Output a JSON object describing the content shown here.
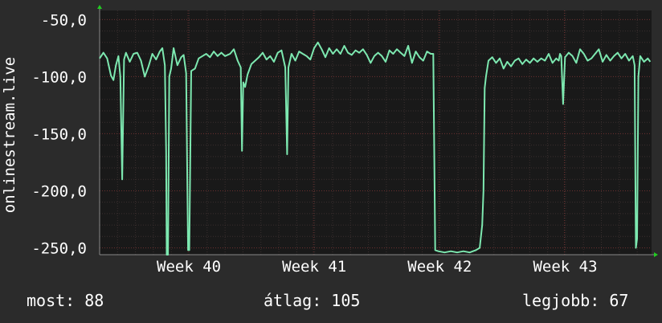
{
  "chart_data": {
    "type": "line",
    "ylabel": "onlinestream.live",
    "ylim": [
      -256,
      -42
    ],
    "yticks": [
      {
        "value": -50,
        "label": "-50,0"
      },
      {
        "value": -100,
        "label": "-100,0"
      },
      {
        "value": -150,
        "label": "-150,0"
      },
      {
        "value": -200,
        "label": "-200,0"
      },
      {
        "value": -250,
        "label": "-250,0"
      }
    ],
    "xlim": [
      0,
      4.4
    ],
    "xticks": [
      {
        "value": 0.705,
        "label": "Week 40"
      },
      {
        "value": 1.705,
        "label": "Week 41"
      },
      {
        "value": 2.705,
        "label": "Week 42"
      },
      {
        "value": 3.705,
        "label": "Week 43"
      }
    ],
    "grid": true,
    "colors": {
      "background": "#2b2b2b",
      "plot": "#191919",
      "grid_minor": "#3a2f2f",
      "grid_major": "#6a2f2f",
      "line": "#7de8b0",
      "axis": "#888888",
      "arrow": "#22cc22"
    },
    "series": [
      {
        "values": [
          [
            0.0,
            -84
          ],
          [
            0.03,
            -79
          ],
          [
            0.06,
            -84
          ],
          [
            0.09,
            -99
          ],
          [
            0.11,
            -103
          ],
          [
            0.13,
            -90
          ],
          [
            0.15,
            -82
          ],
          [
            0.165,
            -100
          ],
          [
            0.18,
            -190
          ],
          [
            0.195,
            -85
          ],
          [
            0.21,
            -79
          ],
          [
            0.24,
            -87
          ],
          [
            0.27,
            -80
          ],
          [
            0.3,
            -79
          ],
          [
            0.33,
            -86
          ],
          [
            0.36,
            -100
          ],
          [
            0.39,
            -91
          ],
          [
            0.42,
            -80
          ],
          [
            0.45,
            -85
          ],
          [
            0.48,
            -78
          ],
          [
            0.5,
            -75
          ],
          [
            0.52,
            -90
          ],
          [
            0.53,
            -165
          ],
          [
            0.535,
            -256
          ],
          [
            0.545,
            -256
          ],
          [
            0.555,
            -100
          ],
          [
            0.57,
            -93
          ],
          [
            0.59,
            -75
          ],
          [
            0.62,
            -90
          ],
          [
            0.65,
            -83
          ],
          [
            0.67,
            -81
          ],
          [
            0.69,
            -97
          ],
          [
            0.705,
            -252
          ],
          [
            0.715,
            -252
          ],
          [
            0.73,
            -95
          ],
          [
            0.76,
            -93
          ],
          [
            0.79,
            -84
          ],
          [
            0.82,
            -82
          ],
          [
            0.85,
            -80
          ],
          [
            0.88,
            -83
          ],
          [
            0.91,
            -78
          ],
          [
            0.94,
            -82
          ],
          [
            0.97,
            -79
          ],
          [
            1.0,
            -82
          ],
          [
            1.04,
            -80
          ],
          [
            1.07,
            -76
          ],
          [
            1.1,
            -86
          ],
          [
            1.125,
            -92
          ],
          [
            1.135,
            -165
          ],
          [
            1.145,
            -105
          ],
          [
            1.16,
            -109
          ],
          [
            1.18,
            -98
          ],
          [
            1.21,
            -89
          ],
          [
            1.24,
            -86
          ],
          [
            1.27,
            -83
          ],
          [
            1.3,
            -79
          ],
          [
            1.33,
            -85
          ],
          [
            1.36,
            -82
          ],
          [
            1.39,
            -87
          ],
          [
            1.42,
            -79
          ],
          [
            1.45,
            -77
          ],
          [
            1.48,
            -92
          ],
          [
            1.495,
            -168
          ],
          [
            1.505,
            -92
          ],
          [
            1.53,
            -80
          ],
          [
            1.56,
            -86
          ],
          [
            1.59,
            -78
          ],
          [
            1.62,
            -80
          ],
          [
            1.65,
            -82
          ],
          [
            1.68,
            -85
          ],
          [
            1.71,
            -75
          ],
          [
            1.74,
            -70
          ],
          [
            1.77,
            -76
          ],
          [
            1.8,
            -83
          ],
          [
            1.83,
            -75
          ],
          [
            1.86,
            -80
          ],
          [
            1.89,
            -76
          ],
          [
            1.92,
            -80
          ],
          [
            1.95,
            -73
          ],
          [
            1.98,
            -79
          ],
          [
            2.01,
            -81
          ],
          [
            2.04,
            -77
          ],
          [
            2.07,
            -79
          ],
          [
            2.1,
            -76
          ],
          [
            2.13,
            -81
          ],
          [
            2.16,
            -88
          ],
          [
            2.19,
            -82
          ],
          [
            2.22,
            -79
          ],
          [
            2.25,
            -82
          ],
          [
            2.28,
            -87
          ],
          [
            2.31,
            -77
          ],
          [
            2.34,
            -80
          ],
          [
            2.37,
            -76
          ],
          [
            2.4,
            -79
          ],
          [
            2.43,
            -82
          ],
          [
            2.46,
            -73
          ],
          [
            2.49,
            -88
          ],
          [
            2.52,
            -78
          ],
          [
            2.55,
            -83
          ],
          [
            2.58,
            -86
          ],
          [
            2.61,
            -78
          ],
          [
            2.64,
            -80
          ],
          [
            2.66,
            -80
          ],
          [
            2.675,
            -252
          ],
          [
            2.7,
            -253
          ],
          [
            2.75,
            -254
          ],
          [
            2.8,
            -253
          ],
          [
            2.85,
            -254
          ],
          [
            2.9,
            -253
          ],
          [
            2.95,
            -254
          ],
          [
            3.0,
            -252
          ],
          [
            3.03,
            -250
          ],
          [
            3.05,
            -230
          ],
          [
            3.06,
            -200
          ],
          [
            3.07,
            -110
          ],
          [
            3.08,
            -100
          ],
          [
            3.1,
            -86
          ],
          [
            3.13,
            -83
          ],
          [
            3.16,
            -88
          ],
          [
            3.19,
            -84
          ],
          [
            3.22,
            -93
          ],
          [
            3.25,
            -87
          ],
          [
            3.28,
            -91
          ],
          [
            3.31,
            -86
          ],
          [
            3.34,
            -84
          ],
          [
            3.37,
            -89
          ],
          [
            3.4,
            -85
          ],
          [
            3.43,
            -88
          ],
          [
            3.46,
            -84
          ],
          [
            3.49,
            -87
          ],
          [
            3.52,
            -84
          ],
          [
            3.55,
            -86
          ],
          [
            3.58,
            -80
          ],
          [
            3.61,
            -88
          ],
          [
            3.64,
            -84
          ],
          [
            3.66,
            -86
          ],
          [
            3.67,
            -80
          ],
          [
            3.68,
            -82
          ],
          [
            3.695,
            -124
          ],
          [
            3.71,
            -83
          ],
          [
            3.74,
            -79
          ],
          [
            3.77,
            -82
          ],
          [
            3.8,
            -88
          ],
          [
            3.83,
            -76
          ],
          [
            3.86,
            -80
          ],
          [
            3.89,
            -86
          ],
          [
            3.92,
            -84
          ],
          [
            3.95,
            -80
          ],
          [
            3.98,
            -76
          ],
          [
            4.01,
            -87
          ],
          [
            4.04,
            -81
          ],
          [
            4.07,
            -86
          ],
          [
            4.1,
            -82
          ],
          [
            4.13,
            -79
          ],
          [
            4.16,
            -84
          ],
          [
            4.19,
            -80
          ],
          [
            4.22,
            -86
          ],
          [
            4.25,
            -82
          ],
          [
            4.265,
            -90
          ],
          [
            4.275,
            -250
          ],
          [
            4.285,
            -242
          ],
          [
            4.295,
            -100
          ],
          [
            4.31,
            -82
          ],
          [
            4.34,
            -87
          ],
          [
            4.37,
            -84
          ],
          [
            4.39,
            -87
          ]
        ]
      }
    ]
  },
  "stats": {
    "current": "most: 88",
    "average": "átlag: 105",
    "best": "legjobb: 67"
  }
}
